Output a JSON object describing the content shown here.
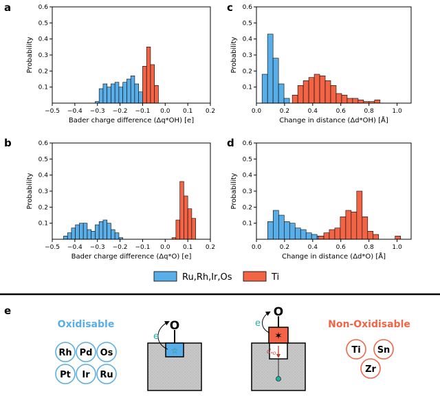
{
  "colors": {
    "blue": "#5aaee8",
    "red": "#f26446",
    "edge": "#000000"
  },
  "legend": {
    "blue_label": "Ru,Rh,Ir,Os",
    "red_label": "Ti"
  },
  "chart_data": [
    {
      "panel": "a",
      "type": "bar",
      "xlabel": "Bader charge difference (Δq*OH) [e]",
      "ylabel": "Probability",
      "xlim": [
        -0.5,
        0.2
      ],
      "ylim": [
        0,
        0.6
      ],
      "xticks": [
        -0.5,
        -0.4,
        -0.3,
        -0.2,
        -0.1,
        0.0,
        0.1,
        0.2
      ],
      "xtick_labels": [
        "−0.5",
        "−0.4",
        "−0.3",
        "−0.2",
        "−0.1",
        "0.0",
        "0.1",
        "0.2"
      ],
      "yticks": [
        0.1,
        0.2,
        0.3,
        0.4,
        0.5,
        0.6
      ],
      "ytick_labels": [
        "0.1",
        "0.2",
        "0.3",
        "0.4",
        "0.5",
        "0.6"
      ],
      "bin_width": 0.0175,
      "series": [
        {
          "name": "Ru,Rh,Ir,Os",
          "color": "blue",
          "bin_starts": [
            -0.31,
            -0.2925,
            -0.275,
            -0.2575,
            -0.24,
            -0.2225,
            -0.205,
            -0.1875,
            -0.17,
            -0.1525,
            -0.135,
            -0.1175,
            -0.1,
            -0.0825
          ],
          "values": [
            0.01,
            0.09,
            0.12,
            0.1,
            0.12,
            0.13,
            0.1,
            0.13,
            0.15,
            0.17,
            0.12,
            0.07,
            0.03,
            0.01
          ]
        },
        {
          "name": "Ti",
          "color": "red",
          "bin_starts": [
            -0.1,
            -0.0825,
            -0.065,
            -0.0475
          ],
          "values": [
            0.23,
            0.35,
            0.24,
            0.11
          ]
        }
      ]
    },
    {
      "panel": "b",
      "type": "bar",
      "xlabel": "Bader charge difference (Δq*O) [e]",
      "ylabel": "Probability",
      "xlim": [
        -0.5,
        0.2
      ],
      "ylim": [
        0,
        0.6
      ],
      "xticks": [
        -0.5,
        -0.4,
        -0.3,
        -0.2,
        -0.1,
        0.0,
        0.1,
        0.2
      ],
      "xtick_labels": [
        "−0.5",
        "−0.4",
        "−0.3",
        "−0.2",
        "−0.1",
        "0.0",
        "0.1",
        "0.2"
      ],
      "yticks": [
        0.1,
        0.2,
        0.3,
        0.4,
        0.5,
        0.6
      ],
      "ytick_labels": [
        "0.1",
        "0.2",
        "0.3",
        "0.4",
        "0.5",
        "0.6"
      ],
      "bin_width": 0.0175,
      "series": [
        {
          "name": "Ru,Rh,Ir,Os",
          "color": "blue",
          "bin_starts": [
            -0.45,
            -0.4325,
            -0.415,
            -0.3975,
            -0.38,
            -0.3625,
            -0.345,
            -0.3275,
            -0.31,
            -0.2925,
            -0.275,
            -0.2575,
            -0.24,
            -0.2225,
            -0.205
          ],
          "values": [
            0.02,
            0.04,
            0.07,
            0.09,
            0.1,
            0.1,
            0.06,
            0.05,
            0.09,
            0.11,
            0.12,
            0.1,
            0.06,
            0.04,
            0.01
          ]
        },
        {
          "name": "Ti",
          "color": "red",
          "bin_starts": [
            0.03,
            0.0475,
            0.065,
            0.0825,
            0.1,
            0.1175
          ],
          "values": [
            0.01,
            0.12,
            0.36,
            0.27,
            0.19,
            0.13
          ]
        }
      ]
    },
    {
      "panel": "c",
      "type": "bar",
      "xlabel": "Change in distance (Δd*OH) [Å]",
      "ylabel": "Probability",
      "xlim": [
        0,
        1.1
      ],
      "ylim": [
        0,
        0.6
      ],
      "xticks": [
        0.0,
        0.2,
        0.4,
        0.6,
        0.8,
        1.0
      ],
      "xtick_labels": [
        "0.0",
        "0.2",
        "0.4",
        "0.6",
        "0.8",
        "1.0"
      ],
      "yticks": [
        0.1,
        0.2,
        0.3,
        0.4,
        0.5,
        0.6
      ],
      "ytick_labels": [
        "0.1",
        "0.2",
        "0.3",
        "0.4",
        "0.5",
        "0.6"
      ],
      "bin_width": 0.039,
      "series": [
        {
          "name": "Ru,Rh,Ir,Os",
          "color": "blue",
          "bin_starts": [
            0.04,
            0.079,
            0.118,
            0.157,
            0.196
          ],
          "values": [
            0.18,
            0.43,
            0.28,
            0.12,
            0.03
          ]
        },
        {
          "name": "Ti",
          "color": "red",
          "bin_starts": [
            0.255,
            0.294,
            0.333,
            0.372,
            0.411,
            0.45,
            0.489,
            0.528,
            0.567,
            0.606,
            0.645,
            0.684,
            0.723,
            0.762,
            0.801,
            0.84
          ],
          "values": [
            0.05,
            0.11,
            0.14,
            0.16,
            0.18,
            0.17,
            0.14,
            0.11,
            0.06,
            0.05,
            0.03,
            0.03,
            0.02,
            0.01,
            0.01,
            0.02
          ]
        }
      ]
    },
    {
      "panel": "d",
      "type": "bar",
      "xlabel": "Change in distance (Δd*O) [Å]",
      "ylabel": "Probability",
      "xlim": [
        0,
        1.1
      ],
      "ylim": [
        0,
        0.6
      ],
      "xticks": [
        0.0,
        0.2,
        0.4,
        0.6,
        0.8,
        1.0
      ],
      "xtick_labels": [
        "0.0",
        "0.2",
        "0.4",
        "0.6",
        "0.8",
        "1.0"
      ],
      "yticks": [
        0.1,
        0.2,
        0.3,
        0.4,
        0.5,
        0.6
      ],
      "ytick_labels": [
        "0.1",
        "0.2",
        "0.3",
        "0.4",
        "0.5",
        "0.6"
      ],
      "bin_width": 0.039,
      "series": [
        {
          "name": "Ru,Rh,Ir,Os",
          "color": "blue",
          "bin_starts": [
            0.08,
            0.119,
            0.158,
            0.197,
            0.236,
            0.275,
            0.314,
            0.353,
            0.392,
            0.431,
            0.47
          ],
          "values": [
            0.11,
            0.18,
            0.15,
            0.11,
            0.1,
            0.07,
            0.06,
            0.04,
            0.03,
            0.02,
            0.01
          ]
        },
        {
          "name": "Ti",
          "color": "red",
          "bin_starts": [
            0.44,
            0.479,
            0.518,
            0.557,
            0.596,
            0.635,
            0.674,
            0.713,
            0.752,
            0.791,
            0.83,
            0.986
          ],
          "values": [
            0.02,
            0.04,
            0.06,
            0.07,
            0.14,
            0.18,
            0.17,
            0.3,
            0.14,
            0.05,
            0.03,
            0.02
          ]
        }
      ]
    }
  ],
  "panel_letters": {
    "a": "a",
    "b": "b",
    "c": "c",
    "d": "d",
    "e": "e"
  },
  "diagram": {
    "oxidisable_title": "Oxidisable",
    "oxidisable_elements": [
      "Rh",
      "Pd",
      "Os",
      "Pt",
      "Ir",
      "Ru"
    ],
    "non_oxidisable_title": "Non-Oxidisable",
    "non_oxidisable_elements": [
      "Ti",
      "Sn",
      "Zr"
    ],
    "o_label_left": "O",
    "o_label_right": "O",
    "e_label_left": "e",
    "e_label_right": "e",
    "d_label": "d",
    "d_sub": "*O"
  }
}
